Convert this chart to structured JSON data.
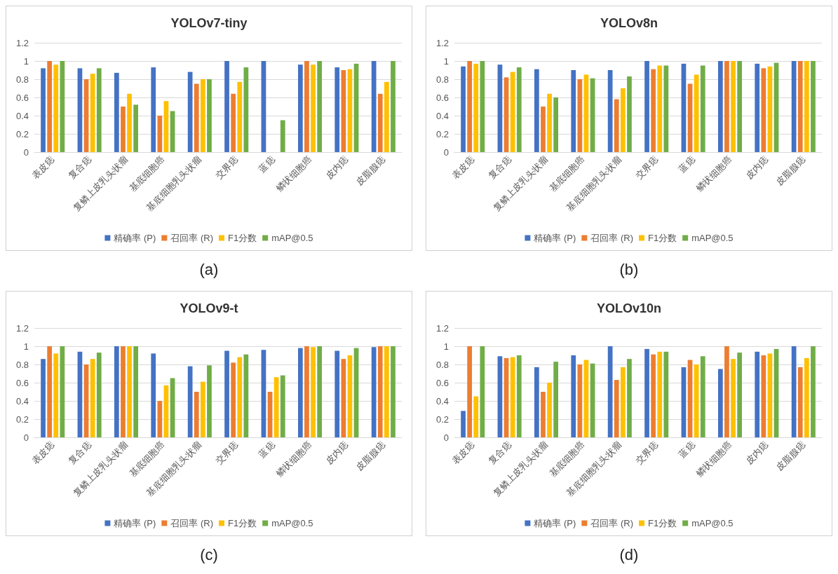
{
  "chart_data": [
    {
      "type": "bar",
      "title": "YOLOv7-tiny",
      "annotations": [
        "(a)"
      ],
      "categories": [
        "表皮痣",
        "复合痣",
        "复鳞上皮乳头状瘤",
        "基底细胞癌",
        "基底细胞乳头状瘤",
        "交界痣",
        "蓝痣",
        "鳞状细胞癌",
        "皮内痣",
        "皮脂腺痣"
      ],
      "ylim": [
        0,
        1.2
      ],
      "yticks": [
        0,
        0.2,
        0.4,
        0.6,
        0.8,
        1,
        1.2
      ],
      "grid": "y",
      "legend": "bottom",
      "series": [
        {
          "name": "精确率 (P)",
          "color": "#4472c4",
          "values": [
            0.92,
            0.92,
            0.87,
            0.93,
            0.88,
            1,
            1,
            0.96,
            0.93,
            1
          ]
        },
        {
          "name": "召回率 (R)",
          "color": "#ed7d31",
          "values": [
            1,
            0.8,
            0.5,
            0.4,
            0.75,
            0.64,
            0,
            1,
            0.9,
            0.64
          ]
        },
        {
          "name": "F1分数",
          "color": "#ffc000",
          "values": [
            0.96,
            0.86,
            0.64,
            0.56,
            0.8,
            0.77,
            0,
            0.96,
            0.91,
            0.77
          ]
        },
        {
          "name": "mAP@0.5",
          "color": "#70ad47",
          "values": [
            1,
            0.92,
            0.52,
            0.45,
            0.8,
            0.93,
            0.35,
            1,
            0.97,
            1
          ]
        }
      ]
    },
    {
      "type": "bar",
      "title": "YOLOv8n",
      "annotations": [
        "(b)"
      ],
      "categories": [
        "表皮痣",
        "复合痣",
        "复鳞上皮乳头状瘤",
        "基底细胞癌",
        "基底细胞乳头状瘤",
        "交界痣",
        "蓝痣",
        "鳞状细胞癌",
        "皮内痣",
        "皮脂腺痣"
      ],
      "ylim": [
        0,
        1.2
      ],
      "yticks": [
        0,
        0.2,
        0.4,
        0.6,
        0.8,
        1,
        1.2
      ],
      "grid": "y",
      "legend": "bottom",
      "series": [
        {
          "name": "精确率 (P)",
          "color": "#4472c4",
          "values": [
            0.94,
            0.96,
            0.91,
            0.9,
            0.9,
            1,
            0.97,
            1,
            0.97,
            1
          ]
        },
        {
          "name": "召回率 (R)",
          "color": "#ed7d31",
          "values": [
            1,
            0.82,
            0.5,
            0.8,
            0.58,
            0.91,
            0.75,
            1,
            0.92,
            1
          ]
        },
        {
          "name": "F1分数",
          "color": "#ffc000",
          "values": [
            0.97,
            0.88,
            0.64,
            0.85,
            0.7,
            0.95,
            0.85,
            1,
            0.94,
            1
          ]
        },
        {
          "name": "mAP@0.5",
          "color": "#70ad47",
          "values": [
            1,
            0.93,
            0.6,
            0.81,
            0.83,
            0.95,
            0.95,
            1,
            0.98,
            1
          ]
        }
      ]
    },
    {
      "type": "bar",
      "title": "YOLOv9-t",
      "annotations": [
        "(c)"
      ],
      "categories": [
        "表皮痣",
        "复合痣",
        "复鳞上皮乳头状瘤",
        "基底细胞癌",
        "基底细胞乳头状瘤",
        "交界痣",
        "蓝痣",
        "鳞状细胞癌",
        "皮内痣",
        "皮脂腺痣"
      ],
      "ylim": [
        0,
        1.2
      ],
      "yticks": [
        0,
        0.2,
        0.4,
        0.6,
        0.8,
        1,
        1.2
      ],
      "grid": "y",
      "legend": "bottom",
      "series": [
        {
          "name": "精确率 (P)",
          "color": "#4472c4",
          "values": [
            0.86,
            0.94,
            1,
            0.92,
            0.78,
            0.95,
            0.96,
            0.98,
            0.95,
            0.99
          ]
        },
        {
          "name": "召回率 (R)",
          "color": "#ed7d31",
          "values": [
            1,
            0.8,
            1,
            0.4,
            0.5,
            0.82,
            0.5,
            1,
            0.86,
            1
          ]
        },
        {
          "name": "F1分数",
          "color": "#ffc000",
          "values": [
            0.92,
            0.86,
            1,
            0.57,
            0.61,
            0.88,
            0.66,
            0.99,
            0.9,
            1
          ]
        },
        {
          "name": "mAP@0.5",
          "color": "#70ad47",
          "values": [
            1,
            0.93,
            1,
            0.65,
            0.79,
            0.91,
            0.68,
            1,
            0.98,
            1
          ]
        }
      ]
    },
    {
      "type": "bar",
      "title": "YOLOv10n",
      "annotations": [
        "(d)"
      ],
      "categories": [
        "表皮痣",
        "复合痣",
        "复鳞上皮乳头状瘤",
        "基底细胞癌",
        "基底细胞乳头状瘤",
        "交界痣",
        "蓝痣",
        "鳞状细胞癌",
        "皮内痣",
        "皮脂腺痣"
      ],
      "ylim": [
        0,
        1.2
      ],
      "yticks": [
        0,
        0.2,
        0.4,
        0.6,
        0.8,
        1,
        1.2
      ],
      "grid": "y",
      "legend": "bottom",
      "series": [
        {
          "name": "精确率 (P)",
          "color": "#4472c4",
          "values": [
            0.29,
            0.89,
            0.77,
            0.9,
            1,
            0.97,
            0.77,
            0.75,
            0.94,
            1
          ]
        },
        {
          "name": "召回率 (R)",
          "color": "#ed7d31",
          "values": [
            1,
            0.87,
            0.5,
            0.8,
            0.63,
            0.91,
            0.85,
            1,
            0.9,
            0.77
          ]
        },
        {
          "name": "F1分数",
          "color": "#ffc000",
          "values": [
            0.45,
            0.88,
            0.6,
            0.85,
            0.77,
            0.94,
            0.8,
            0.86,
            0.92,
            0.87
          ]
        },
        {
          "name": "mAP@0.5",
          "color": "#70ad47",
          "values": [
            1,
            0.9,
            0.83,
            0.81,
            0.86,
            0.94,
            0.89,
            0.93,
            0.97,
            1
          ]
        }
      ]
    }
  ]
}
